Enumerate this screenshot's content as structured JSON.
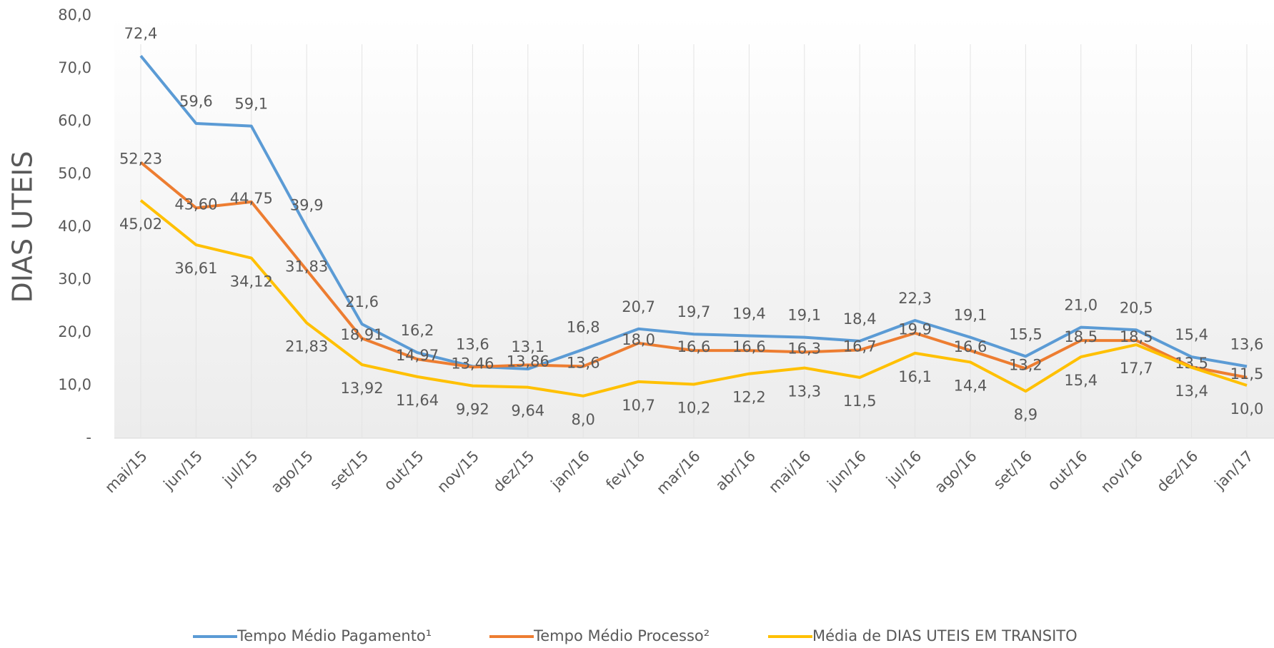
{
  "chart_data": {
    "type": "line",
    "ylabel": "DIAS UTEIS",
    "categories": [
      "mai/15",
      "jun/15",
      "jul/15",
      "ago/15",
      "set/15",
      "out/15",
      "nov/15",
      "dez/15",
      "jan/16",
      "fev/16",
      "mar/16",
      "abr/16",
      "mai/16",
      "jun/16",
      "jul/16",
      "ago/16",
      "set/16",
      "out/16",
      "nov/16",
      "dez/16",
      "jan/17"
    ],
    "series": [
      {
        "name": "Tempo Médio Pagamento¹",
        "color": "#5b9bd5",
        "values": [
          72.4,
          59.6,
          59.1,
          39.9,
          21.6,
          16.2,
          13.6,
          13.1,
          16.8,
          20.7,
          19.7,
          19.4,
          19.1,
          18.4,
          22.3,
          19.1,
          15.5,
          21.0,
          20.5,
          15.4,
          13.6
        ],
        "value_labels": [
          "72,4",
          "59,6",
          "59,1",
          "39,9",
          "21,6",
          "16,2",
          "13,6",
          "13,1",
          "16,8",
          "20,7",
          "19,7",
          "19,4",
          "19,1",
          "18,4",
          "22,3",
          "19,1",
          "15,5",
          "21,0",
          "20,5",
          "15,4",
          "13,6"
        ]
      },
      {
        "name": "Tempo Médio Processo²",
        "color": "#ed7d31",
        "values": [
          52.23,
          43.6,
          44.75,
          31.83,
          18.91,
          14.97,
          13.46,
          13.86,
          13.6,
          18.0,
          16.6,
          16.6,
          16.3,
          16.7,
          19.9,
          16.6,
          13.2,
          18.5,
          18.5,
          13.5,
          11.5
        ],
        "value_labels": [
          "52,23",
          "43,60",
          "44,75",
          "31,83",
          "18,91",
          "14,97",
          "13,46",
          "13,86",
          "13,6",
          "18,0",
          "16,6",
          "16,6",
          "16,3",
          "16,7",
          "19,9",
          "16,6",
          "13,2",
          "18,5",
          "18,5",
          "13,5",
          "11,5"
        ]
      },
      {
        "name": "Média de DIAS UTEIS EM TRANSITO",
        "color": "#ffc000",
        "values": [
          45.02,
          36.61,
          34.12,
          21.83,
          13.92,
          11.64,
          9.92,
          9.64,
          8.0,
          10.7,
          10.2,
          12.2,
          13.3,
          11.5,
          16.1,
          14.4,
          8.9,
          15.4,
          17.7,
          13.4,
          10.0
        ],
        "value_labels": [
          "45,02",
          "36,61",
          "34,12",
          "21,83",
          "13,92",
          "11,64",
          "9,92",
          "9,64",
          "8,0",
          "10,7",
          "10,2",
          "12,2",
          "13,3",
          "11,5",
          "16,1",
          "14,4",
          "8,9",
          "15,4",
          "17,7",
          "13,4",
          "10,0"
        ]
      }
    ],
    "ylim": [
      0,
      80
    ],
    "yticks": [
      {
        "value": 0,
        "label": "-"
      },
      {
        "value": 10,
        "label": "10,0"
      },
      {
        "value": 20,
        "label": "20,0"
      },
      {
        "value": 30,
        "label": "30,0"
      },
      {
        "value": 40,
        "label": "40,0"
      },
      {
        "value": 50,
        "label": "50,0"
      },
      {
        "value": 60,
        "label": "60,0"
      },
      {
        "value": 70,
        "label": "70,0"
      },
      {
        "value": 80,
        "label": "80,0"
      }
    ],
    "grid": false,
    "legend": "bottom"
  }
}
